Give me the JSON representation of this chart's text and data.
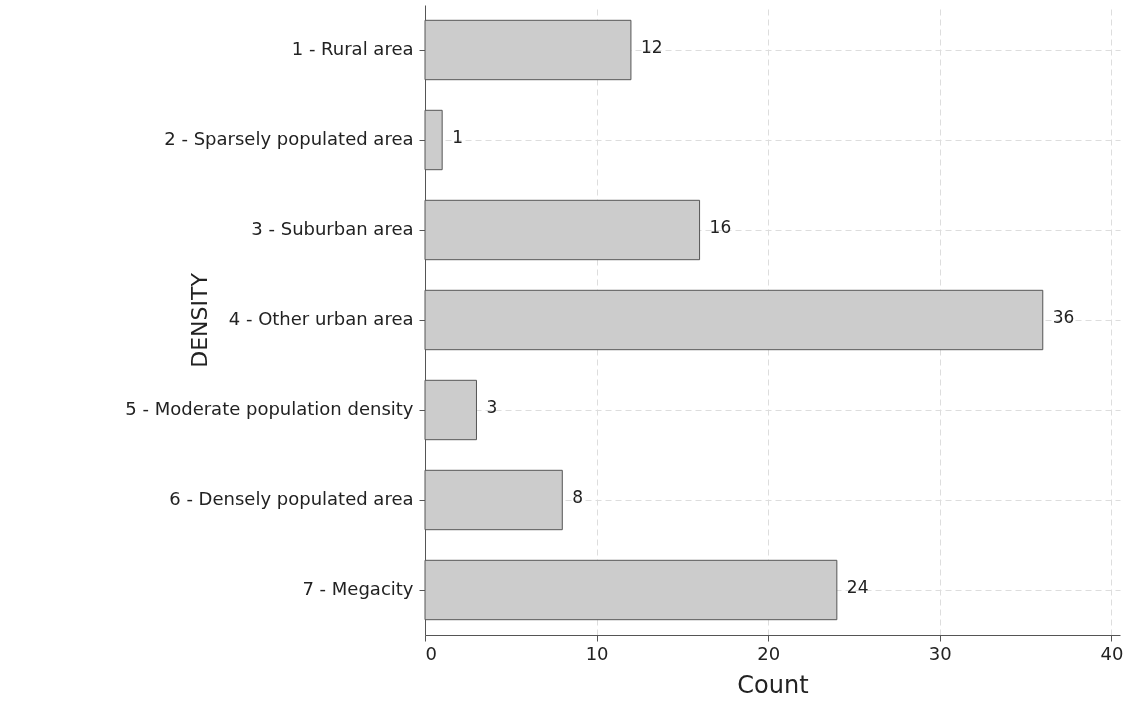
{
  "chart_data": {
    "type": "bar",
    "orientation": "horizontal",
    "xlabel": "Count",
    "ylabel": "DENSITY",
    "categories": [
      "1 - Rural area",
      "2 - Sparsely populated area",
      "3 - Suburban area",
      "4 - Other urban area",
      "5 - Moderate population density",
      "6 - Densely populated area",
      "7 - Megacity"
    ],
    "values": [
      12,
      1,
      16,
      36,
      3,
      8,
      24
    ],
    "color": "#cccccc",
    "xlim": [
      0,
      40.5
    ],
    "xticks": [
      0,
      10,
      20,
      30,
      40
    ],
    "grid": true,
    "data_labels": true
  }
}
